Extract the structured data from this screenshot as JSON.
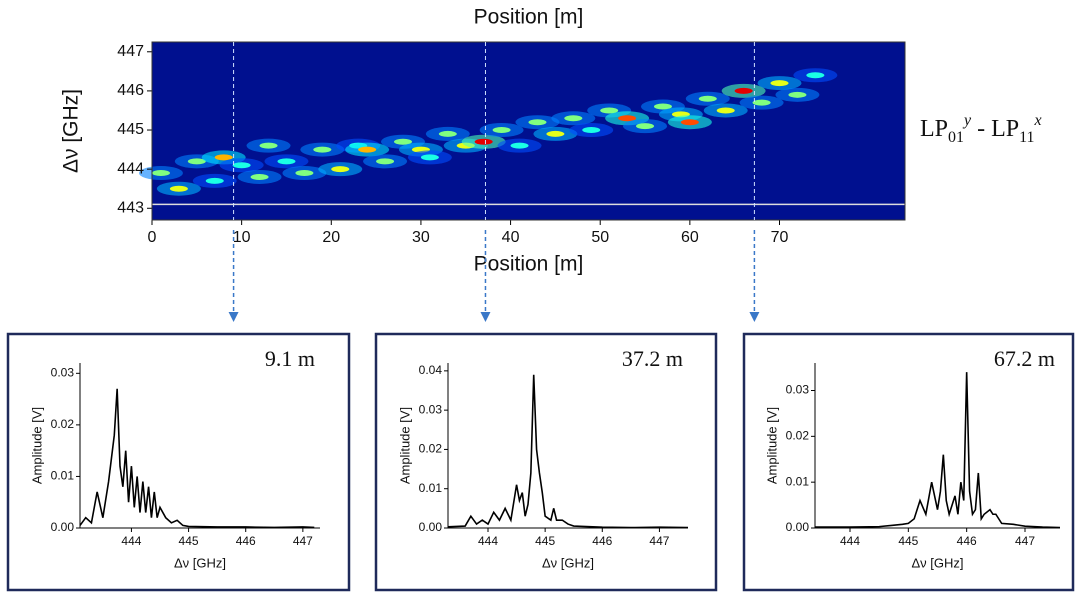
{
  "chart_data": [
    {
      "type": "heatmap",
      "xlabel": "Position [m]",
      "ylabel": "Δν [GHz]",
      "annotation_parts": [
        "LP",
        "01",
        "y",
        " - LP",
        "11",
        "x"
      ],
      "xlim": [
        0,
        84
      ],
      "ylim": [
        442.7,
        447.25
      ],
      "xticks": [
        0,
        10,
        20,
        30,
        40,
        50,
        60,
        70
      ],
      "yticks": [
        443,
        444,
        445,
        446,
        447
      ],
      "hline": 443.1,
      "markers": [
        9.1,
        37.2,
        67.2
      ],
      "x": [
        1,
        3,
        5,
        7,
        8,
        10,
        12,
        13,
        15,
        17,
        19,
        21,
        23,
        24,
        26,
        28,
        30,
        31,
        33,
        35,
        37,
        39,
        41,
        43,
        45,
        47,
        49,
        51,
        53,
        55,
        57,
        59,
        60,
        62,
        64,
        66,
        68,
        70,
        72,
        74
      ],
      "y": [
        443.9,
        443.5,
        444.2,
        443.7,
        444.3,
        444.1,
        443.8,
        444.6,
        444.2,
        443.9,
        444.5,
        444.0,
        444.6,
        444.5,
        444.2,
        444.7,
        444.5,
        444.3,
        444.9,
        444.6,
        444.7,
        445.0,
        444.6,
        445.2,
        444.9,
        445.3,
        445.0,
        445.5,
        445.3,
        445.1,
        445.6,
        445.4,
        445.2,
        445.8,
        445.5,
        446.0,
        445.7,
        446.2,
        445.9,
        446.4
      ],
      "values": [
        0.5,
        0.6,
        0.5,
        0.4,
        0.7,
        0.4,
        0.5,
        0.5,
        0.4,
        0.5,
        0.5,
        0.6,
        0.4,
        0.7,
        0.5,
        0.5,
        0.6,
        0.4,
        0.5,
        0.6,
        0.9,
        0.5,
        0.4,
        0.5,
        0.6,
        0.5,
        0.4,
        0.5,
        0.8,
        0.5,
        0.5,
        0.6,
        0.8,
        0.5,
        0.6,
        0.9,
        0.5,
        0.6,
        0.5,
        0.4
      ]
    },
    {
      "type": "line",
      "annotation": "9.1 m",
      "xlabel": "Δν [GHz]",
      "ylabel": "Amplitude [V]",
      "color": "#000000",
      "xlim": [
        443.1,
        447.3
      ],
      "ylim": [
        0,
        0.032
      ],
      "xticks": [
        444,
        445,
        446,
        447
      ],
      "yticks": [
        {
          "value": 0,
          "label": "0.00"
        },
        0.01,
        0.02,
        0.03
      ],
      "x": [
        443.1,
        443.2,
        443.3,
        443.4,
        443.5,
        443.6,
        443.7,
        443.75,
        443.8,
        443.85,
        443.9,
        443.95,
        444.0,
        444.05,
        444.1,
        444.15,
        444.2,
        444.25,
        444.3,
        444.35,
        444.4,
        444.45,
        444.5,
        444.6,
        444.7,
        444.8,
        444.9,
        445.0,
        445.5,
        446.0,
        446.5,
        447.0,
        447.2
      ],
      "values": [
        0.0005,
        0.002,
        0.001,
        0.007,
        0.002,
        0.009,
        0.018,
        0.027,
        0.012,
        0.008,
        0.015,
        0.005,
        0.012,
        0.004,
        0.01,
        0.003,
        0.009,
        0.003,
        0.008,
        0.002,
        0.007,
        0.002,
        0.004,
        0.002,
        0.001,
        0.0015,
        0.0005,
        0.0003,
        0.0002,
        0.0002,
        0.0001,
        0.0002,
        0.0001
      ]
    },
    {
      "type": "line",
      "annotation": "37.2 m",
      "xlabel": "Δν [GHz]",
      "ylabel": "Amplitude [V]",
      "color": "#000000",
      "xlim": [
        443.3,
        447.5
      ],
      "ylim": [
        0,
        0.042
      ],
      "xticks": [
        444,
        445,
        446,
        447
      ],
      "yticks": [
        {
          "value": 0,
          "label": "0.00"
        },
        0.01,
        0.02,
        0.03,
        0.04
      ],
      "x": [
        443.3,
        443.6,
        443.7,
        443.8,
        443.9,
        444.0,
        444.1,
        444.2,
        444.3,
        444.4,
        444.5,
        444.55,
        444.6,
        444.65,
        444.7,
        444.75,
        444.8,
        444.85,
        444.9,
        444.95,
        445.0,
        445.1,
        445.15,
        445.2,
        445.3,
        445.4,
        445.5,
        446.0,
        446.5,
        447.0,
        447.5
      ],
      "values": [
        0.0003,
        0.0005,
        0.003,
        0.001,
        0.002,
        0.001,
        0.004,
        0.002,
        0.005,
        0.002,
        0.011,
        0.007,
        0.009,
        0.003,
        0.006,
        0.014,
        0.039,
        0.02,
        0.014,
        0.009,
        0.003,
        0.002,
        0.005,
        0.002,
        0.002,
        0.001,
        0.0005,
        0.0002,
        0.0001,
        0.0002,
        0.0001
      ]
    },
    {
      "type": "line",
      "annotation": "67.2 m",
      "xlabel": "Δν [GHz]",
      "ylabel": "Amplitude [V]",
      "color": "#000000",
      "xlim": [
        443.4,
        447.6
      ],
      "ylim": [
        0,
        0.036
      ],
      "xticks": [
        444,
        445,
        446,
        447
      ],
      "yticks": [
        {
          "value": 0,
          "label": "0.00"
        },
        0.01,
        0.02,
        0.03
      ],
      "x": [
        443.4,
        444.0,
        444.5,
        444.9,
        445.0,
        445.1,
        445.2,
        445.3,
        445.4,
        445.5,
        445.55,
        445.6,
        445.65,
        445.7,
        445.8,
        445.85,
        445.9,
        445.95,
        446.0,
        446.05,
        446.1,
        446.15,
        446.2,
        446.25,
        446.3,
        446.4,
        446.45,
        446.5,
        446.6,
        446.8,
        447.0,
        447.3,
        447.6
      ],
      "values": [
        0.0002,
        0.0002,
        0.0003,
        0.0008,
        0.001,
        0.002,
        0.006,
        0.003,
        0.01,
        0.004,
        0.008,
        0.016,
        0.006,
        0.003,
        0.007,
        0.003,
        0.01,
        0.006,
        0.034,
        0.008,
        0.003,
        0.004,
        0.012,
        0.002,
        0.003,
        0.004,
        0.003,
        0.003,
        0.001,
        0.0008,
        0.0004,
        0.0002,
        0.0001
      ]
    }
  ]
}
